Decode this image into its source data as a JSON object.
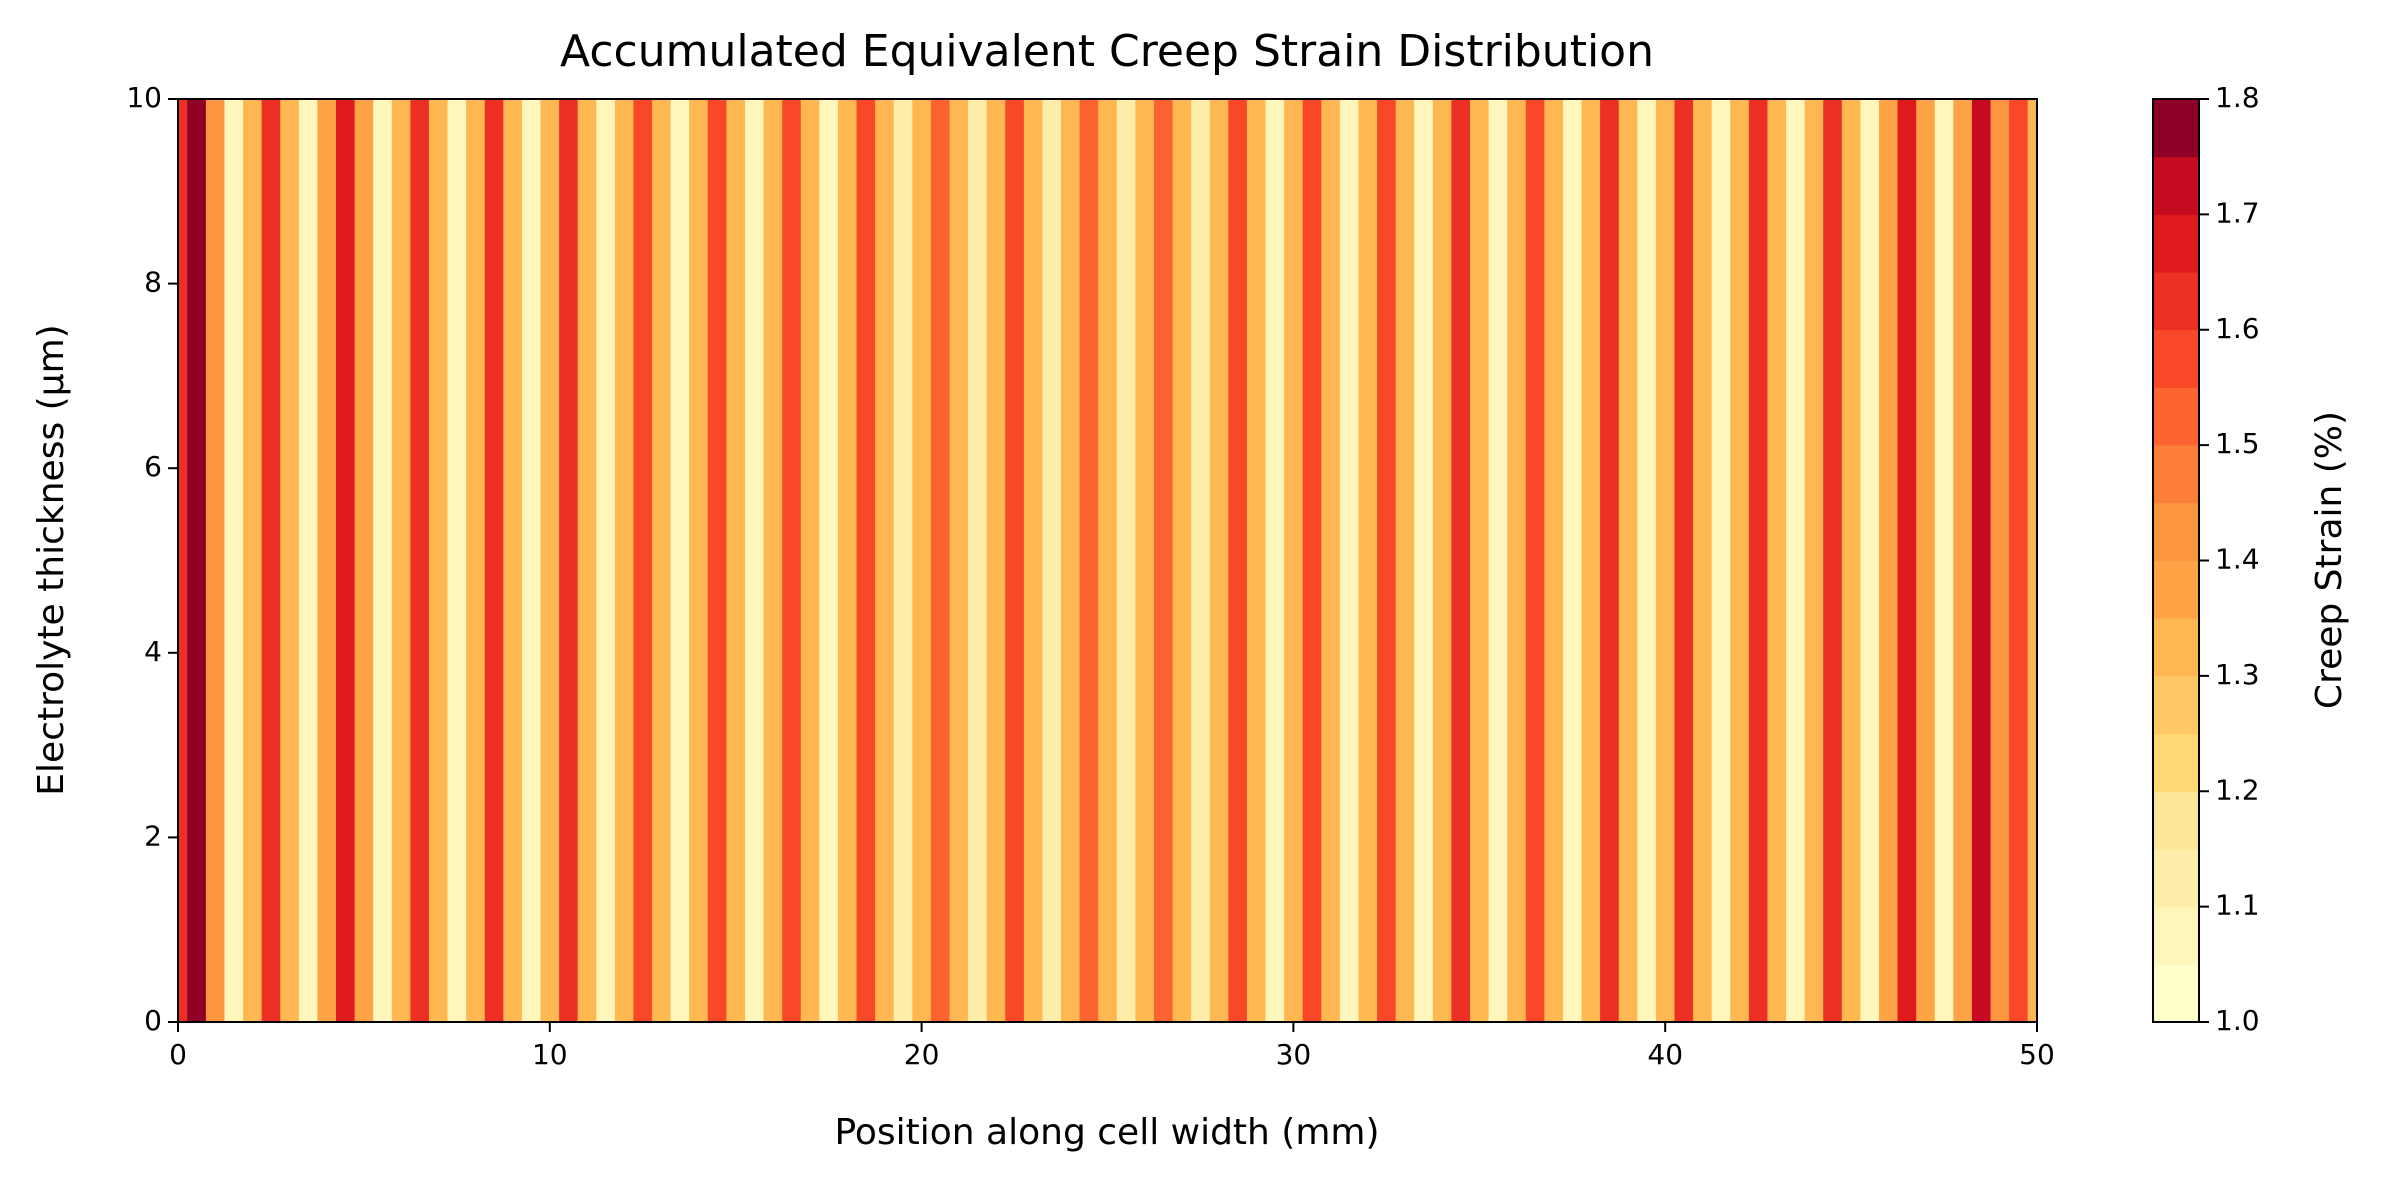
{
  "chart_data": {
    "type": "contourf",
    "title": "Accumulated Equivalent Creep Strain Distribution",
    "x_label": "Position along cell width (mm)",
    "y_label": "Electrolyte thickness (μm)",
    "colorbar_label": "Creep Strain (%)",
    "x": [
      0,
      0.5,
      1,
      1.5,
      2,
      2.5,
      3,
      3.5,
      4,
      4.5,
      5,
      5.5,
      6,
      6.5,
      7,
      7.5,
      8,
      8.5,
      9,
      9.5,
      10,
      10.5,
      11,
      11.5,
      12,
      12.5,
      13,
      13.5,
      14,
      14.5,
      15,
      15.5,
      16,
      16.5,
      17,
      17.5,
      18,
      18.5,
      19,
      19.5,
      20,
      20.5,
      21,
      21.5,
      22,
      22.5,
      23,
      23.5,
      24,
      24.5,
      25,
      25.5,
      26,
      26.5,
      27,
      27.5,
      28,
      28.5,
      29,
      29.5,
      30,
      30.5,
      31,
      31.5,
      32,
      32.5,
      33,
      33.5,
      34,
      34.5,
      35,
      35.5,
      36,
      36.5,
      37,
      37.5,
      38,
      38.5,
      39,
      39.5,
      40,
      40.5,
      41,
      41.5,
      42,
      42.5,
      43,
      43.5,
      44,
      44.5,
      45,
      45.5,
      46,
      46.5,
      47,
      47.5,
      48,
      48.5,
      49,
      49.5,
      50
    ],
    "values": [
      1.6,
      1.75,
      1.4,
      1.05,
      1.3,
      1.6,
      1.3,
      1.05,
      1.35,
      1.65,
      1.35,
      1.05,
      1.3,
      1.6,
      1.3,
      1.05,
      1.3,
      1.6,
      1.3,
      1.05,
      1.3,
      1.6,
      1.3,
      1.05,
      1.3,
      1.55,
      1.3,
      1.05,
      1.3,
      1.55,
      1.3,
      1.05,
      1.3,
      1.55,
      1.3,
      1.05,
      1.3,
      1.55,
      1.3,
      1.1,
      1.3,
      1.5,
      1.3,
      1.1,
      1.3,
      1.55,
      1.3,
      1.1,
      1.3,
      1.5,
      1.3,
      1.1,
      1.3,
      1.5,
      1.3,
      1.1,
      1.3,
      1.55,
      1.3,
      1.05,
      1.3,
      1.55,
      1.3,
      1.05,
      1.3,
      1.55,
      1.3,
      1.05,
      1.3,
      1.6,
      1.3,
      1.05,
      1.3,
      1.55,
      1.3,
      1.05,
      1.3,
      1.6,
      1.3,
      1.05,
      1.3,
      1.6,
      1.3,
      1.05,
      1.3,
      1.6,
      1.3,
      1.05,
      1.3,
      1.6,
      1.3,
      1.05,
      1.35,
      1.65,
      1.35,
      1.05,
      1.35,
      1.7,
      1.4,
      1.55,
      1.3
    ],
    "xlim": [
      0,
      50
    ],
    "xticks": [
      0,
      10,
      20,
      30,
      40,
      50
    ],
    "ylim": [
      0,
      10
    ],
    "yticks": [
      0,
      2,
      4,
      6,
      8,
      10
    ],
    "clim": [
      1.0,
      1.8
    ],
    "cticks": [
      {
        "value": 1.0,
        "label": "1.0"
      },
      1.1,
      1.2,
      1.3,
      1.4,
      1.5,
      1.6,
      1.7,
      1.8
    ],
    "colors": [
      "#ffffcc",
      "#fff6bb",
      "#ffedaa",
      "#fee598",
      "#fed976",
      "#fec965",
      "#feb751",
      "#fea446",
      "#fd9640",
      "#fd7e38",
      "#fc6330",
      "#f94828",
      "#ec3023",
      "#de1a1d",
      "#c60a22",
      "#8f0026"
    ]
  }
}
